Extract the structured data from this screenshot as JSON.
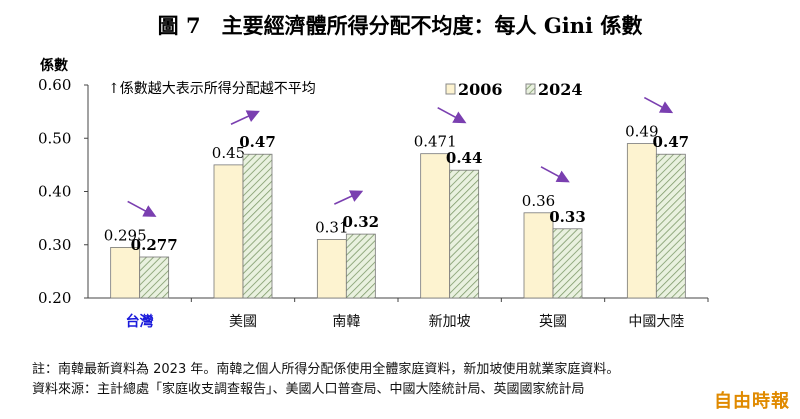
{
  "chart_data": {
    "type": "bar",
    "title": "圖 7　主要經濟體所得分配不均度：每人 Gini 係數",
    "ylabel": "係數",
    "annotation": "↑係數越大表示所得分配越不平均",
    "ylim": [
      0.2,
      0.6
    ],
    "yticks": [
      "0.20",
      "0.30",
      "0.40",
      "0.50",
      "0.60"
    ],
    "categories": [
      "台灣",
      "美國",
      "南韓",
      "新加坡",
      "英國",
      "中國大陸"
    ],
    "highlight_category_color": "#1a1adb",
    "series": [
      {
        "name": "2006",
        "values": [
          0.295,
          0.45,
          0.31,
          0.471,
          0.36,
          0.49
        ],
        "labels": [
          "0.295",
          "0.45",
          "0.31",
          "0.471",
          "0.36",
          "0.49"
        ],
        "color": "#fdf3d0"
      },
      {
        "name": "2024",
        "values": [
          0.277,
          0.47,
          0.32,
          0.44,
          0.33,
          0.47
        ],
        "labels": [
          "0.277",
          "0.47",
          "0.32",
          "0.44",
          "0.33",
          "0.47"
        ],
        "color": "#d6e6c6"
      }
    ],
    "trend_arrows": [
      "down",
      "up",
      "up",
      "down",
      "down",
      "down"
    ],
    "arrow_color": "#7a3fb0",
    "legend": "top-right"
  },
  "notes": {
    "note": "註：南韓最新資料為 2023 年。南韓之個人所得分配係使用全體家庭資料，新加坡使用就業家庭資料。",
    "source": "資料來源：主計總處「家庭收支調查報告」、美國人口普查局、中國大陸統計局、英國國家統計局"
  },
  "watermark": "自由時報"
}
